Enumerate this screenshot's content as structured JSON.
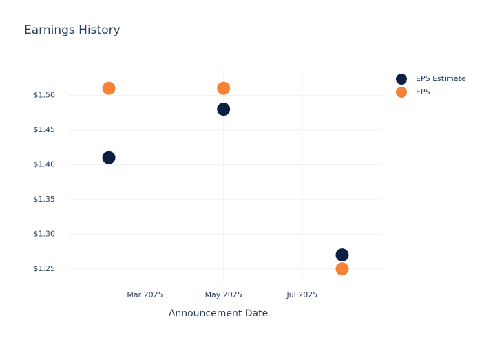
{
  "chart_data": {
    "type": "scatter",
    "title": "Earnings History",
    "x_label": "Announcement Date",
    "x": [
      "2025-02",
      "2025-05",
      "2025-08"
    ],
    "series": [
      {
        "name": "EPS Estimate",
        "color": "#0c1f45",
        "values": [
          1.41,
          1.48,
          1.27
        ]
      },
      {
        "name": "EPS",
        "color": "#f58235",
        "values": [
          1.51,
          1.51,
          1.25
        ]
      }
    ],
    "xlim": [
      "2025-01",
      "2025-09"
    ],
    "xticks": [
      {
        "value": "2025-03",
        "label": "Mar 2025"
      },
      {
        "value": "2025-05",
        "label": "May 2025"
      },
      {
        "value": "2025-07",
        "label": "Jul 2025"
      }
    ],
    "ylim": [
      1.229,
      1.538
    ],
    "yticks": [
      {
        "value": 1.25,
        "label": "$1.25"
      },
      {
        "value": 1.3,
        "label": "$1.30"
      },
      {
        "value": 1.35,
        "label": "$1.35"
      },
      {
        "value": 1.4,
        "label": "$1.40"
      },
      {
        "value": 1.45,
        "label": "$1.45"
      },
      {
        "value": 1.5,
        "label": "$1.50"
      }
    ],
    "grid": true,
    "legend": "top-right"
  }
}
